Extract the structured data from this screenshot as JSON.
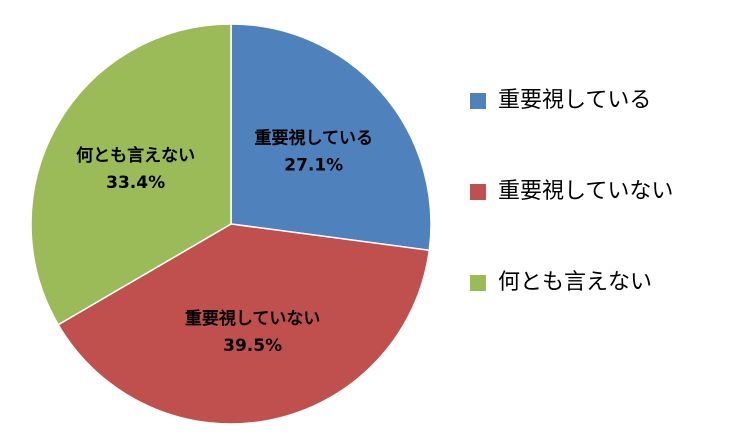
{
  "chart_data": {
    "type": "pie",
    "categories": [
      "重要視している",
      "重要視していない",
      "何とも言えない"
    ],
    "values": [
      27.1,
      39.5,
      33.4
    ],
    "value_labels": [
      "27.1%",
      "39.5%",
      "33.4%"
    ],
    "colors": [
      "#4f81bd",
      "#c0504d",
      "#9bbb59"
    ],
    "legend": "right"
  }
}
